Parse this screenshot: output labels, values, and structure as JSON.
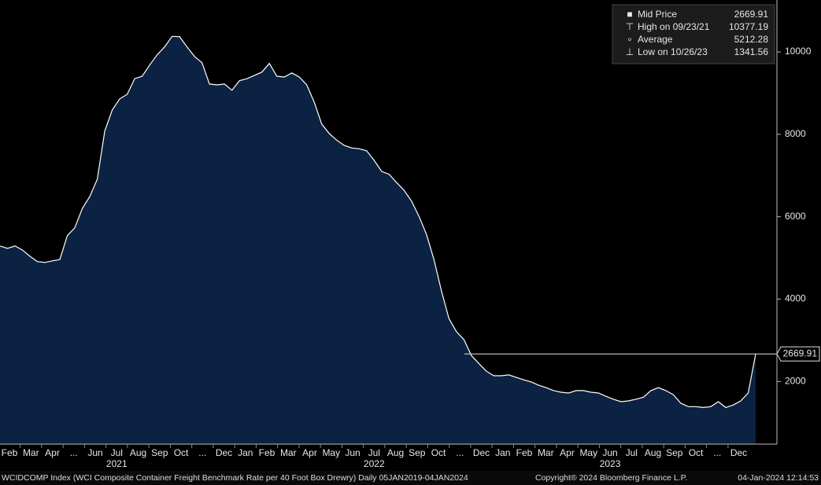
{
  "chart_data": {
    "type": "area",
    "color": "#0c2242",
    "line_color": "#ffffff",
    "x_labels": [
      "Feb",
      "Mar",
      "Apr",
      "...",
      "Jun",
      "Jul",
      "Aug",
      "Sep",
      "Oct",
      "...",
      "Dec",
      "Jan",
      "Feb",
      "Mar",
      "Apr",
      "May",
      "Jun",
      "Jul",
      "Aug",
      "Sep",
      "Oct",
      "...",
      "Dec",
      "Jan",
      "Feb",
      "Mar",
      "Apr",
      "May",
      "Jun",
      "Jul",
      "Aug",
      "Sep",
      "Oct",
      "...",
      "Dec"
    ],
    "years": [
      {
        "label": "2021",
        "month": 5
      },
      {
        "label": "2022",
        "month": 17
      },
      {
        "label": "2023",
        "month": 28
      }
    ],
    "values": [
      5290,
      5230,
      5290,
      5190,
      5040,
      4910,
      4890,
      4930,
      4960,
      5540,
      5730,
      6200,
      6490,
      6910,
      8080,
      8590,
      8860,
      8970,
      9350,
      9410,
      9680,
      9930,
      10120,
      10377.19,
      10370,
      10120,
      9890,
      9740,
      9220,
      9200,
      9220,
      9070,
      9300,
      9350,
      9430,
      9510,
      9720,
      9410,
      9390,
      9490,
      9390,
      9200,
      8780,
      8250,
      8020,
      7860,
      7730,
      7670,
      7650,
      7600,
      7370,
      7100,
      7030,
      6830,
      6640,
      6380,
      6010,
      5570,
      4960,
      4200,
      3530,
      3210,
      3020,
      2630,
      2440,
      2250,
      2140,
      2140,
      2160,
      2100,
      2040,
      1990,
      1910,
      1850,
      1780,
      1740,
      1720,
      1780,
      1780,
      1740,
      1720,
      1640,
      1570,
      1510,
      1530,
      1570,
      1620,
      1780,
      1850,
      1780,
      1680,
      1470,
      1390,
      1390,
      1370,
      1390,
      1510,
      1370,
      1430,
      1530,
      1720,
      2669.91
    ],
    "ylim": [
      480,
      11260
    ],
    "yticks": [
      2000,
      4000,
      6000,
      8000,
      10000
    ],
    "last_value": {
      "value": 2669.91,
      "label": "2669.91"
    },
    "legend": [
      {
        "name": "Mid Price",
        "value": "2669.91"
      },
      {
        "name": "High on 09/23/21",
        "value": "10377.19"
      },
      {
        "name": "Average",
        "value": "5212.28"
      },
      {
        "name": "Low on 10/26/23",
        "value": "1341.56"
      }
    ],
    "footer": {
      "description": "WCIDCOMP Index (WCI Composite Container Freight Benchmark Rate per 40 Foot Box Drewry)  Daily 05JAN2019-04JAN2024",
      "copyright": "Copyright® 2024 Bloomberg Finance L.P.",
      "timestamp": "04-Jan-2024 12:14:53"
    }
  }
}
